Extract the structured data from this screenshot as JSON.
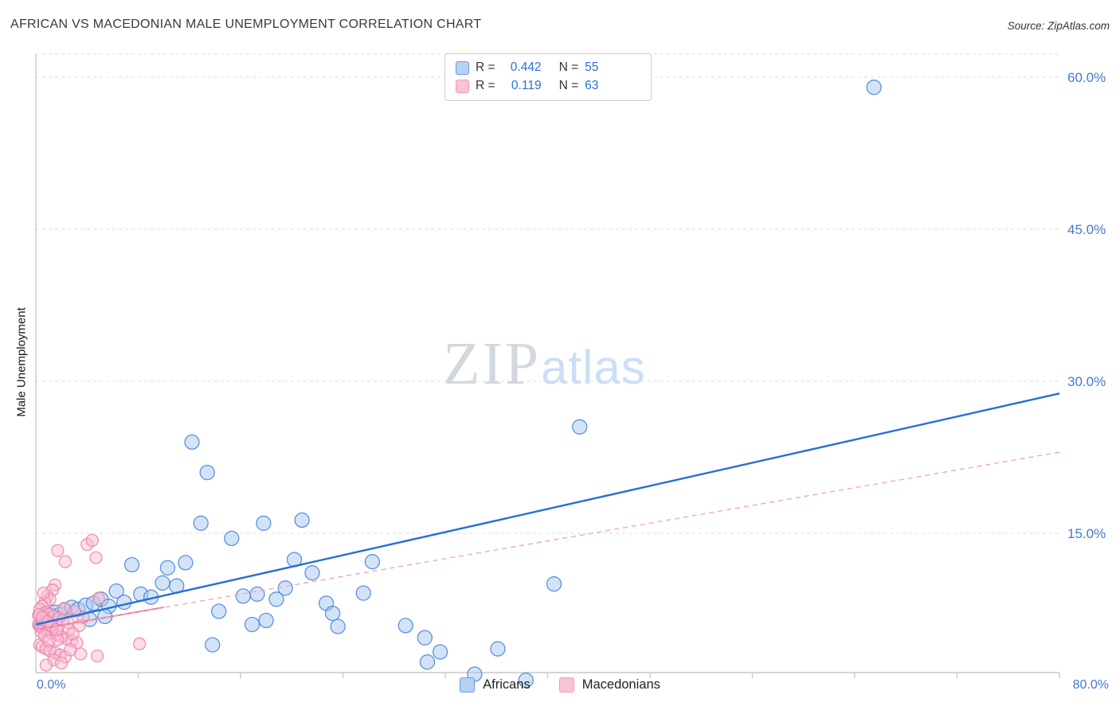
{
  "header": {
    "source": "Source: ZipAtlas.com"
  },
  "chart_data": {
    "type": "scatter",
    "title": "AFRICAN VS MACEDONIAN MALE UNEMPLOYMENT CORRELATION CHART",
    "ylabel": "Male Unemployment",
    "xlim": [
      0,
      80
    ],
    "ylim": [
      0,
      62
    ],
    "x_unit": "%",
    "y_unit": "%",
    "grid": true,
    "x_left_label": "0.0%",
    "x_right_label": "80.0%",
    "yticks": [
      {
        "value": 60,
        "label": "60.0%"
      },
      {
        "value": 45,
        "label": "45.0%"
      },
      {
        "value": 30,
        "label": "30.0%"
      },
      {
        "value": 15,
        "label": "15.0%"
      }
    ],
    "watermark": {
      "zip": "ZIP",
      "atlas": "atlas"
    },
    "stats": [
      {
        "r_label": "R =",
        "r_value": "0.442",
        "n_label": "N =",
        "n_value": "55"
      },
      {
        "r_label": "R =",
        "r_value": "0.119",
        "n_label": "N =",
        "n_value": "63"
      }
    ],
    "legend": {
      "position": "bottom",
      "entries": [
        "Africans",
        "Macedonians"
      ]
    },
    "series": [
      {
        "name": "Africans",
        "fill": "#A8C8F0",
        "stroke": "#4E86D8",
        "radius": 9,
        "points": [
          [
            65.5,
            59.0
          ],
          [
            42.5,
            25.5
          ],
          [
            12.2,
            24.0
          ],
          [
            13.4,
            21.0
          ],
          [
            12.9,
            16.0
          ],
          [
            17.8,
            16.0
          ],
          [
            20.8,
            16.3
          ],
          [
            15.3,
            14.5
          ],
          [
            11.7,
            12.1
          ],
          [
            20.2,
            12.4
          ],
          [
            21.6,
            11.1
          ],
          [
            26.3,
            12.2
          ],
          [
            7.5,
            11.9
          ],
          [
            10.3,
            11.6
          ],
          [
            9.9,
            10.1
          ],
          [
            40.5,
            10.0
          ],
          [
            25.6,
            9.1
          ],
          [
            17.3,
            9.0
          ],
          [
            16.2,
            8.8
          ],
          [
            18.8,
            8.5
          ],
          [
            22.7,
            8.1
          ],
          [
            14.3,
            7.3
          ],
          [
            23.2,
            7.1
          ],
          [
            18.0,
            6.4
          ],
          [
            16.9,
            6.0
          ],
          [
            28.9,
            5.9
          ],
          [
            23.6,
            5.8
          ],
          [
            30.4,
            4.7
          ],
          [
            13.8,
            4.0
          ],
          [
            36.1,
            3.6
          ],
          [
            31.6,
            3.3
          ],
          [
            30.6,
            2.3
          ],
          [
            34.3,
            1.1
          ],
          [
            38.3,
            0.5
          ],
          [
            19.5,
            9.6
          ],
          [
            0.4,
            5.9
          ],
          [
            0.7,
            6.2
          ],
          [
            0.9,
            6.6
          ],
          [
            1.2,
            6.9
          ],
          [
            1.5,
            7.2
          ],
          [
            1.9,
            7.0
          ],
          [
            2.3,
            7.4
          ],
          [
            2.8,
            7.7
          ],
          [
            3.3,
            7.5
          ],
          [
            3.9,
            7.9
          ],
          [
            4.5,
            8.1
          ],
          [
            5.1,
            8.5
          ],
          [
            5.7,
            7.8
          ],
          [
            6.3,
            9.3
          ],
          [
            6.9,
            8.2
          ],
          [
            8.2,
            9.0
          ],
          [
            9.0,
            8.7
          ],
          [
            11.0,
            9.8
          ],
          [
            5.4,
            6.8
          ],
          [
            4.2,
            6.5
          ]
        ]
      },
      {
        "name": "Macedonians",
        "fill": "#F9BCD2",
        "stroke": "#E889AC",
        "radius": 7.5,
        "points": [
          [
            1.7,
            13.3
          ],
          [
            4.0,
            13.9
          ],
          [
            4.4,
            14.3
          ],
          [
            2.3,
            12.2
          ],
          [
            4.7,
            12.6
          ],
          [
            1.5,
            9.9
          ],
          [
            1.3,
            9.4
          ],
          [
            0.9,
            8.8
          ],
          [
            1.1,
            8.5
          ],
          [
            0.7,
            8.2
          ],
          [
            0.5,
            7.8
          ],
          [
            0.3,
            7.5
          ],
          [
            0.8,
            7.2
          ],
          [
            1.0,
            7.0
          ],
          [
            1.4,
            6.8
          ],
          [
            1.8,
            6.6
          ],
          [
            2.1,
            6.4
          ],
          [
            2.5,
            6.2
          ],
          [
            0.2,
            6.0
          ],
          [
            0.4,
            5.8
          ],
          [
            0.6,
            5.6
          ],
          [
            0.9,
            5.4
          ],
          [
            1.2,
            5.2
          ],
          [
            1.6,
            5.0
          ],
          [
            2.0,
            4.8
          ],
          [
            2.4,
            4.6
          ],
          [
            2.8,
            4.4
          ],
          [
            3.2,
            4.2
          ],
          [
            0.3,
            4.0
          ],
          [
            0.5,
            3.8
          ],
          [
            0.8,
            3.6
          ],
          [
            1.1,
            3.4
          ],
          [
            1.5,
            3.2
          ],
          [
            1.9,
            3.0
          ],
          [
            2.3,
            2.8
          ],
          [
            4.8,
            2.9
          ],
          [
            8.1,
            4.1
          ],
          [
            4.9,
            8.6
          ],
          [
            3.4,
            5.9
          ],
          [
            3.7,
            6.7
          ],
          [
            0.2,
            6.9
          ],
          [
            0.6,
            6.5
          ],
          [
            1.0,
            6.1
          ],
          [
            1.3,
            5.7
          ],
          [
            0.4,
            5.3
          ],
          [
            0.7,
            4.9
          ],
          [
            1.7,
            4.5
          ],
          [
            2.6,
            5.5
          ],
          [
            2.9,
            5.1
          ],
          [
            0.3,
            7.0
          ],
          [
            0.5,
            6.7
          ],
          [
            0.9,
            6.3
          ],
          [
            1.2,
            5.9
          ],
          [
            1.6,
            5.5
          ],
          [
            2.2,
            7.6
          ],
          [
            3.0,
            7.3
          ],
          [
            2.7,
            3.5
          ],
          [
            1.4,
            2.5
          ],
          [
            2.0,
            2.2
          ],
          [
            3.5,
            3.1
          ],
          [
            0.8,
            2.0
          ],
          [
            1.0,
            4.4
          ],
          [
            0.6,
            9.1
          ]
        ]
      }
    ],
    "trend_lines": [
      {
        "series": "Macedonians",
        "style": "solid",
        "color": "#e87ba3",
        "width": 2,
        "x": [
          0,
          10
        ],
        "y": [
          5.5,
          7.7
        ]
      },
      {
        "series": "Macedonians",
        "style": "dashed",
        "color": "#f2a0b8",
        "width": 1.3,
        "x": [
          0,
          80
        ],
        "y": [
          5.5,
          23.0
        ]
      },
      {
        "series": "Africans",
        "style": "solid",
        "color": "#2570d4",
        "width": 2.4,
        "x": [
          0,
          80
        ],
        "y": [
          6.0,
          28.8
        ]
      }
    ],
    "accent_color": "#2b6fd6"
  }
}
